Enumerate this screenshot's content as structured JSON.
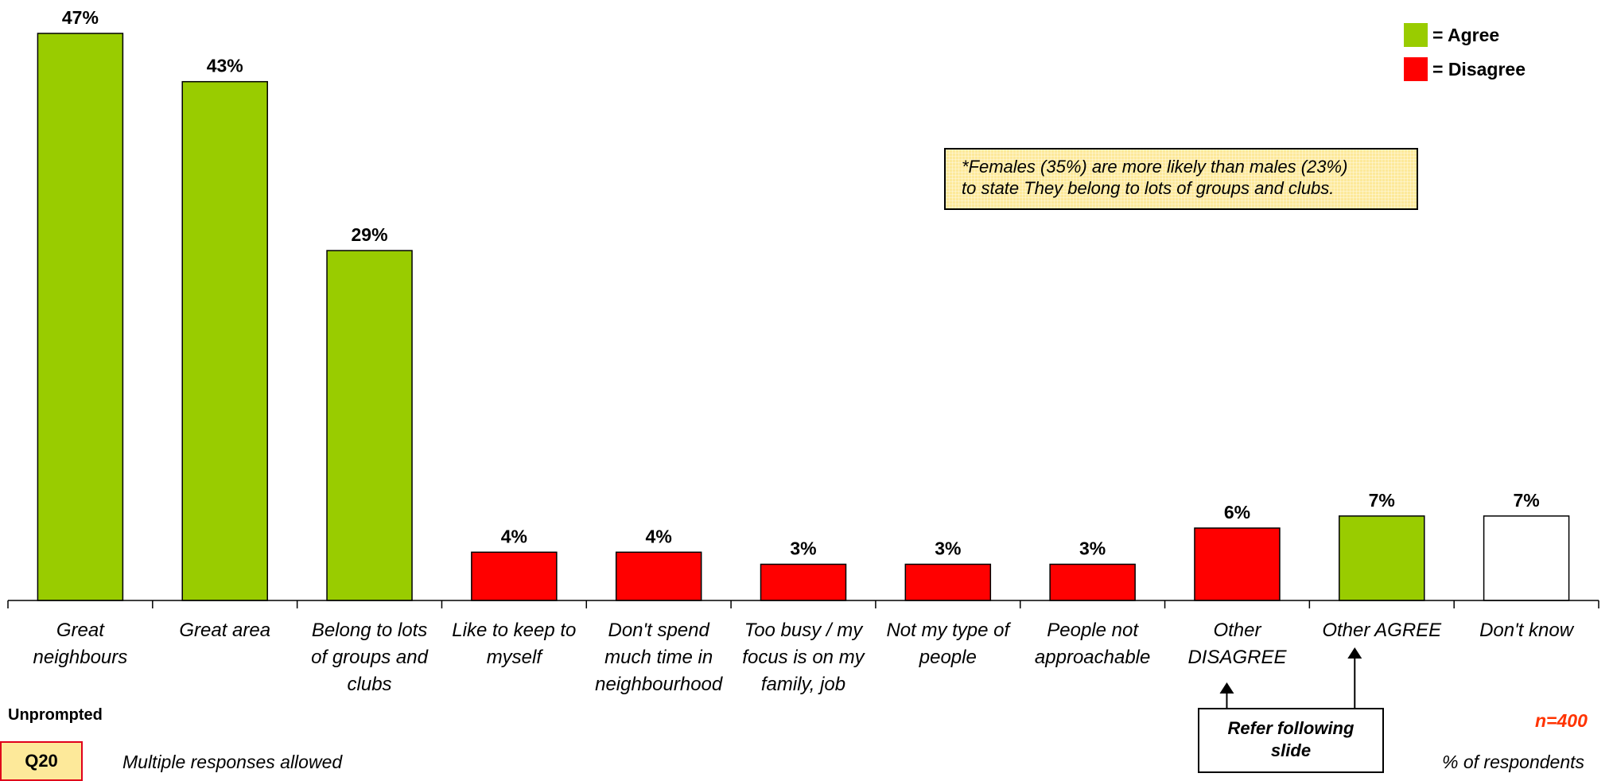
{
  "chart_data": {
    "type": "bar",
    "categories": [
      [
        "Great",
        "neighbours"
      ],
      [
        "Great area"
      ],
      [
        "Belong to lots",
        "of groups and",
        "clubs"
      ],
      [
        "Like to keep to",
        "myself"
      ],
      [
        "Don't spend",
        "much time in",
        "neighbourhood"
      ],
      [
        "Too busy / my",
        "focus is on my",
        "family, job"
      ],
      [
        "Not my type of",
        "people"
      ],
      [
        "People not",
        "approachable"
      ],
      [
        "Other",
        "DISAGREE"
      ],
      [
        "Other AGREE"
      ],
      [
        "Don't know"
      ]
    ],
    "values": [
      47,
      43,
      29,
      4,
      4,
      3,
      3,
      3,
      6,
      7,
      7
    ],
    "value_labels": [
      "47%",
      "43%",
      "29%",
      "4%",
      "4%",
      "3%",
      "3%",
      "3%",
      "6%",
      "7%",
      "7%"
    ],
    "bar_groups": [
      "agree",
      "agree",
      "agree",
      "disagree",
      "disagree",
      "disagree",
      "disagree",
      "disagree",
      "disagree",
      "agree",
      "none"
    ],
    "ylim": [
      0,
      47
    ],
    "grid": false,
    "legend_placement": "top-right",
    "legend": [
      {
        "label": "= Agree",
        "color": "#99cc00"
      },
      {
        "label": "= Disagree",
        "color": "#ff0000"
      }
    ]
  },
  "colors": {
    "agree": "#99cc00",
    "disagree": "#ff0000",
    "none": "#ffffff",
    "n_label": "#ff3300"
  },
  "note": {
    "line1": "*Females (35%) are more likely than males (23%)",
    "line2": "to state They belong to lots of groups and clubs."
  },
  "footer": {
    "unprompted": "Unprompted",
    "question": "Q20",
    "multiple": "Multiple responses allowed",
    "n": "n=400",
    "respondents": "% of respondents",
    "refer_line1": "Refer following",
    "refer_line2": "slide"
  }
}
